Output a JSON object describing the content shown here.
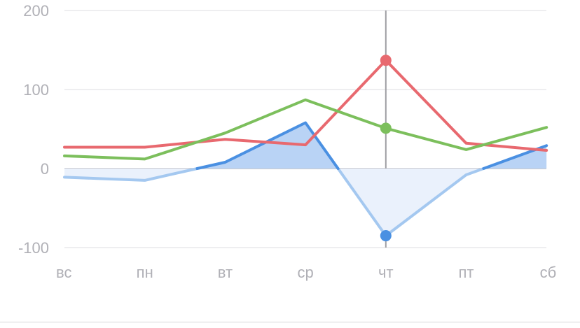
{
  "chart_data": {
    "type": "line",
    "categories": [
      "вс",
      "пн",
      "вт",
      "ср",
      "чт",
      "пт",
      "сб"
    ],
    "ylim": [
      -100,
      200
    ],
    "yticks": [
      200,
      100,
      0,
      -100
    ],
    "grid": true,
    "legend": "none",
    "crosshair_category": "чт",
    "series": [
      {
        "color": "#4a90e2",
        "fill_positive": "#b9d3f5",
        "fill_negative": "#eaf1fc",
        "line_negative": "#a4c8f0",
        "values": [
          -11,
          -15,
          8,
          58,
          -85,
          -8,
          29
        ]
      },
      {
        "color": "#e8696f",
        "values": [
          27,
          27,
          37,
          30,
          137,
          32,
          23
        ]
      },
      {
        "color": "#7cbf5c",
        "values": [
          16,
          12,
          45,
          87,
          51,
          24,
          52
        ]
      }
    ],
    "axis_color": "#b8b8bf",
    "grid_color": "#dcdce0",
    "crosshair_color": "#9e9ea3"
  }
}
